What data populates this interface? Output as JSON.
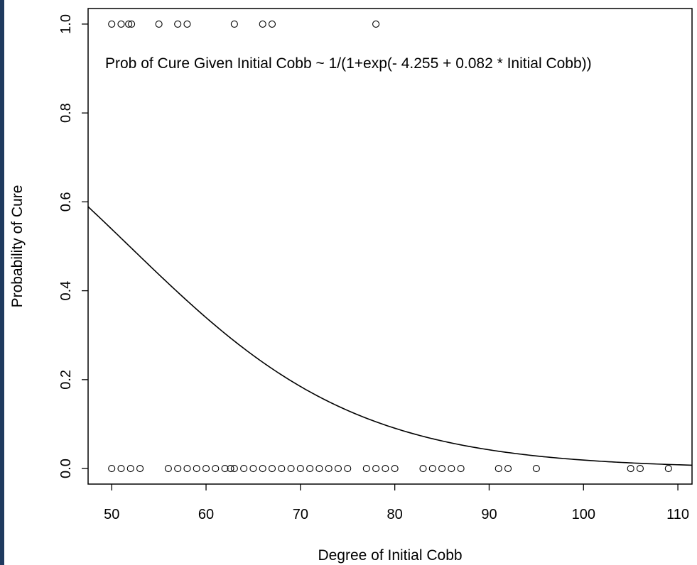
{
  "chart_data": {
    "type": "scatter",
    "xlabel": "Degree of Initial Cobb",
    "ylabel": "Probability of Cure",
    "xlim": [
      47.5,
      111.5
    ],
    "ylim": [
      -0.035,
      1.035
    ],
    "x_ticks": [
      {
        "value": 50,
        "label": "50"
      },
      {
        "value": 60,
        "label": "60"
      },
      {
        "value": 70,
        "label": "70"
      },
      {
        "value": 80,
        "label": "80"
      },
      {
        "value": 90,
        "label": "90"
      },
      {
        "value": 100,
        "label": "100"
      },
      {
        "value": 110,
        "label": "110"
      }
    ],
    "y_ticks": [
      {
        "value": 0.0,
        "label": "0.0"
      },
      {
        "value": 0.2,
        "label": "0.2"
      },
      {
        "value": 0.4,
        "label": "0.4"
      },
      {
        "value": 0.6,
        "label": "0.6"
      },
      {
        "value": 0.8,
        "label": "0.8"
      },
      {
        "value": 1.0,
        "label": "1.0"
      }
    ],
    "annotation": "Prob of Cure Given Initial Cobb ~ 1/(1+exp(- 4.255 + 0.082  * Initial Cobb))",
    "grid": false,
    "series": [
      {
        "kind": "points",
        "marker": "open-circle",
        "points": [
          {
            "x": 50,
            "y": 1
          },
          {
            "x": 51,
            "y": 1
          },
          {
            "x": 51.8,
            "y": 1
          },
          {
            "x": 52.1,
            "y": 1
          },
          {
            "x": 55,
            "y": 1
          },
          {
            "x": 57,
            "y": 1
          },
          {
            "x": 58,
            "y": 1
          },
          {
            "x": 63,
            "y": 1
          },
          {
            "x": 66,
            "y": 1
          },
          {
            "x": 67,
            "y": 1
          },
          {
            "x": 78,
            "y": 1
          },
          {
            "x": 50,
            "y": 0
          },
          {
            "x": 51,
            "y": 0
          },
          {
            "x": 52,
            "y": 0
          },
          {
            "x": 53,
            "y": 0
          },
          {
            "x": 56,
            "y": 0
          },
          {
            "x": 57,
            "y": 0
          },
          {
            "x": 58,
            "y": 0
          },
          {
            "x": 59,
            "y": 0
          },
          {
            "x": 60,
            "y": 0
          },
          {
            "x": 61,
            "y": 0
          },
          {
            "x": 62,
            "y": 0
          },
          {
            "x": 62.6,
            "y": 0
          },
          {
            "x": 63,
            "y": 0
          },
          {
            "x": 64,
            "y": 0
          },
          {
            "x": 65,
            "y": 0
          },
          {
            "x": 66,
            "y": 0
          },
          {
            "x": 67,
            "y": 0
          },
          {
            "x": 68,
            "y": 0
          },
          {
            "x": 69,
            "y": 0
          },
          {
            "x": 70,
            "y": 0
          },
          {
            "x": 71,
            "y": 0
          },
          {
            "x": 72,
            "y": 0
          },
          {
            "x": 73,
            "y": 0
          },
          {
            "x": 74,
            "y": 0
          },
          {
            "x": 75,
            "y": 0
          },
          {
            "x": 77,
            "y": 0
          },
          {
            "x": 78,
            "y": 0
          },
          {
            "x": 79,
            "y": 0
          },
          {
            "x": 80,
            "y": 0
          },
          {
            "x": 83,
            "y": 0
          },
          {
            "x": 84,
            "y": 0
          },
          {
            "x": 85,
            "y": 0
          },
          {
            "x": 86,
            "y": 0
          },
          {
            "x": 87,
            "y": 0
          },
          {
            "x": 91,
            "y": 0
          },
          {
            "x": 92,
            "y": 0
          },
          {
            "x": 95,
            "y": 0
          },
          {
            "x": 105,
            "y": 0
          },
          {
            "x": 106,
            "y": 0
          },
          {
            "x": 109,
            "y": 0
          }
        ]
      },
      {
        "kind": "line",
        "model": "logistic",
        "intercept": 4.255,
        "slope": -0.082,
        "x_range": [
          47.5,
          111.5
        ]
      }
    ]
  }
}
